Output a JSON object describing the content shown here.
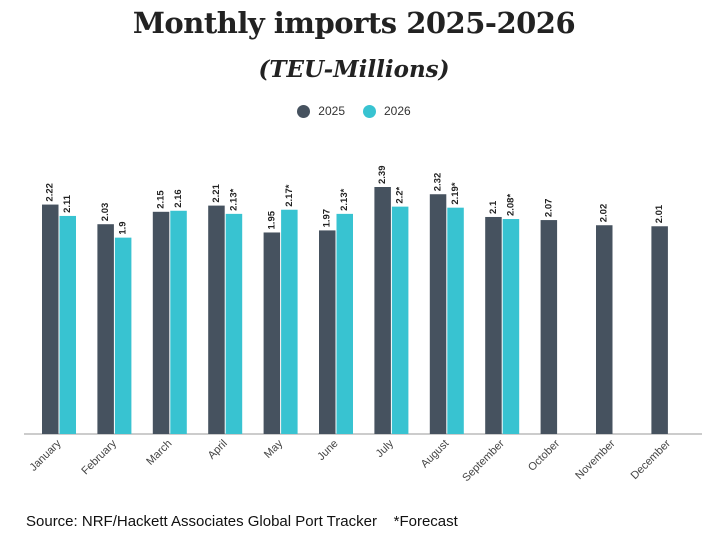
{
  "colors": {
    "s2025": "#46525f",
    "s2026": "#38c3d1",
    "axis": "#9a9a9a",
    "text": "#222222"
  },
  "chart_data": {
    "type": "bar",
    "title": "Monthly imports 2025-2026",
    "subtitle": "(TEU-Millions)",
    "ylim": [
      0,
      2.39
    ],
    "grid": false,
    "legend": "top",
    "categories": [
      "January",
      "February",
      "March",
      "April",
      "May",
      "June",
      "July",
      "August",
      "September",
      "October",
      "November",
      "December"
    ],
    "series": [
      {
        "name": "2025",
        "values": [
          2.22,
          2.03,
          2.15,
          2.21,
          1.95,
          1.97,
          2.39,
          2.32,
          2.1,
          2.07,
          2.02,
          2.01
        ],
        "labels": [
          "2.22",
          "2.03",
          "2.15",
          "2.21",
          "1.95",
          "1.97",
          "2.39",
          "2.32",
          "2.1",
          "2.07",
          "2.02",
          "2.01"
        ]
      },
      {
        "name": "2026",
        "values": [
          2.11,
          1.9,
          2.16,
          2.13,
          2.17,
          2.13,
          2.2,
          2.19,
          2.08,
          null,
          null,
          null
        ],
        "labels": [
          "2.11",
          "1.9",
          "2.16",
          "2.13*",
          "2.17*",
          "2.13*",
          "2.2*",
          "2.19*",
          "2.08*",
          "",
          "",
          ""
        ]
      }
    ]
  },
  "footer": {
    "source": "Source: NRF/Hackett Associates Global Port Tracker    *Forecast"
  }
}
